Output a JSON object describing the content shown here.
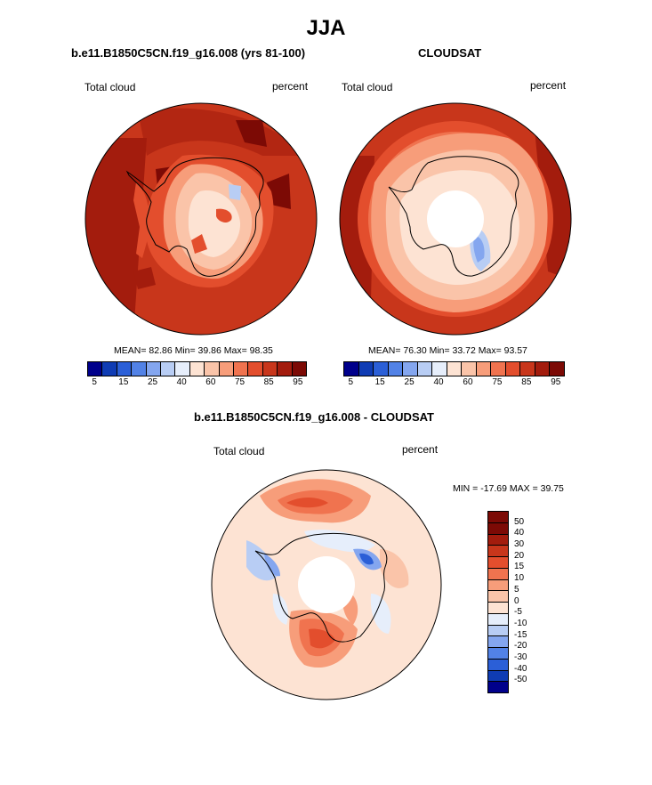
{
  "page_title": "JJA",
  "panels": [
    {
      "title": "b.e11.B1850C5CN.f19_g16.008 (yrs 81-100)",
      "left_label": "Total cloud",
      "right_label": "percent",
      "stats": "MEAN=  82.86  Min=  39.86  Max=  98.35"
    },
    {
      "title": "CLOUDSAT",
      "left_label": "Total cloud",
      "right_label": "percent",
      "stats": "MEAN=  76.30  Min=  33.72  Max=  93.57"
    },
    {
      "title": "b.e11.B1850C5CN.f19_g16.008 - CLOUDSAT",
      "left_label": "Total cloud",
      "right_label": "percent",
      "stats": "MIN = -17.69 MAX =  39.75"
    }
  ],
  "colorbar_abs": {
    "colors": [
      "#00008b",
      "#0f3cb4",
      "#2b5fd7",
      "#5282e6",
      "#84a6ef",
      "#b8cdf4",
      "#e6eefb",
      "#fde3d3",
      "#fac4a9",
      "#f79d7a",
      "#f0734f",
      "#e34e2d",
      "#c8361b",
      "#a31c0d",
      "#7c0a05"
    ],
    "tick_labels": [
      "5",
      "15",
      "25",
      "40",
      "60",
      "75",
      "85",
      "95"
    ]
  },
  "colorbar_diff": {
    "colors": [
      "#7c0a05",
      "#a31c0d",
      "#c8361b",
      "#e34e2d",
      "#f0734f",
      "#f79d7a",
      "#fac4a9",
      "#fde3d3",
      "#e6eefb",
      "#b8cdf4",
      "#84a6ef",
      "#5282e6",
      "#2b5fd7",
      "#0f3cb4",
      "#00008b"
    ],
    "tick_labels": [
      "50",
      "40",
      "30",
      "20",
      "15",
      "10",
      "5",
      "0",
      "-5",
      "-10",
      "-15",
      "-20",
      "-30",
      "-40",
      "-50"
    ]
  }
}
